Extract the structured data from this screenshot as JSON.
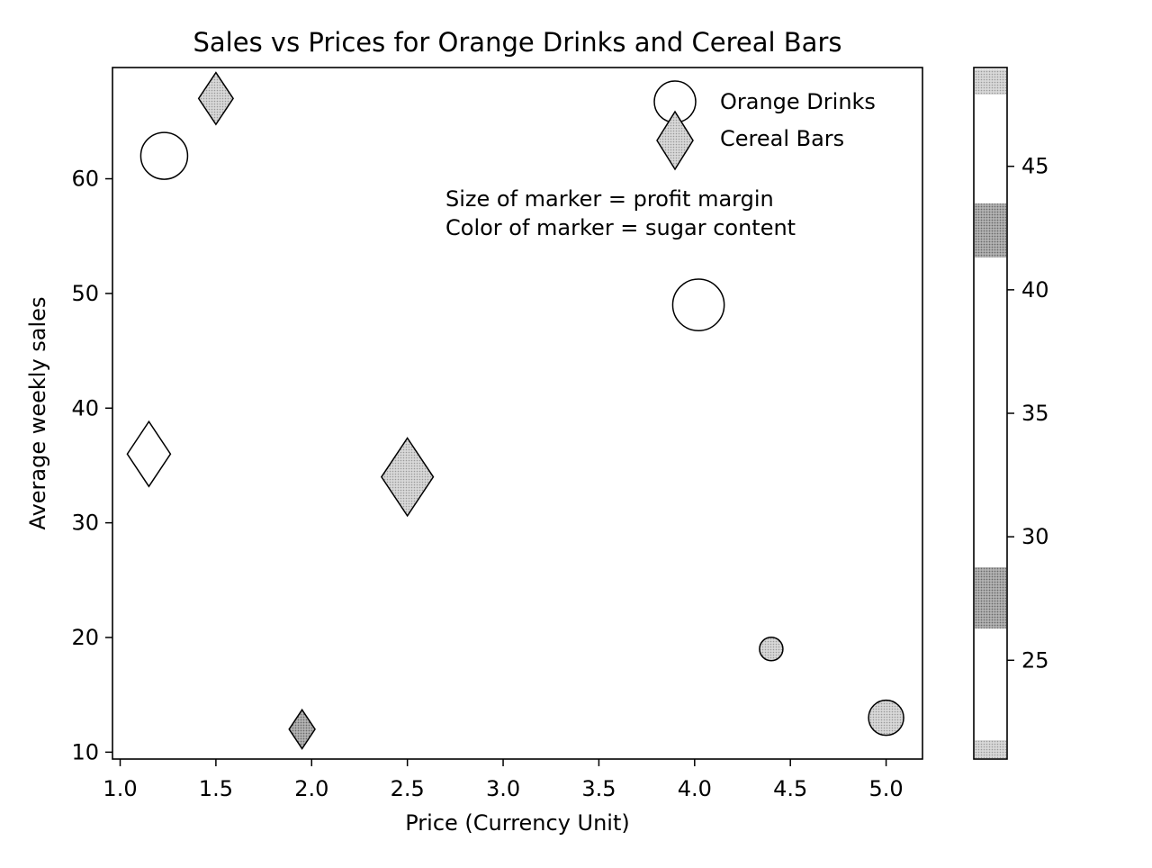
{
  "chart_data": {
    "type": "scatter",
    "title": "Sales vs Prices for Orange Drinks and Cereal Bars",
    "xlabel": "Price (Currency Unit)",
    "ylabel": "Average weekly sales",
    "xlim": [
      0.96,
      5.19
    ],
    "ylim": [
      9.4,
      69.7
    ],
    "xticks": [
      "1.0",
      "1.5",
      "2.0",
      "2.5",
      "3.0",
      "3.5",
      "4.0",
      "4.5",
      "5.0"
    ],
    "yticks": [
      "10",
      "20",
      "30",
      "40",
      "50",
      "60"
    ],
    "grid": false,
    "legend_position": "top-right",
    "annotation_lines": [
      "Size of marker = profit margin",
      "Color of marker = sugar content"
    ],
    "series": [
      {
        "name": "Orange Drinks",
        "marker": "circle",
        "points": [
          {
            "x": 1.23,
            "y": 62,
            "sugar": 46,
            "profit": 2.0
          },
          {
            "x": 4.02,
            "y": 49,
            "sugar": 46,
            "profit": 2.2
          },
          {
            "x": 2.5,
            "y": 34,
            "sugar": 46,
            "profit": 1.4
          },
          {
            "x": 4.4,
            "y": 19,
            "sugar": 28,
            "profit": 1.0
          },
          {
            "x": 5.0,
            "y": 13,
            "sugar": 43,
            "profit": 1.5
          }
        ]
      },
      {
        "name": "Cereal Bars",
        "marker": "diamond",
        "points": [
          {
            "x": 1.5,
            "y": 67,
            "sugar": 43,
            "profit": 1.6
          },
          {
            "x": 1.15,
            "y": 36,
            "sugar": 46,
            "profit": 2.0
          },
          {
            "x": 2.5,
            "y": 34,
            "sugar": 27,
            "profit": 2.4
          },
          {
            "x": 1.95,
            "y": 12,
            "sugar": 40,
            "profit": 1.2
          }
        ]
      }
    ],
    "colorbar": {
      "range": [
        21,
        49
      ],
      "ticks": [
        "25",
        "30",
        "35",
        "40",
        "45"
      ]
    }
  }
}
